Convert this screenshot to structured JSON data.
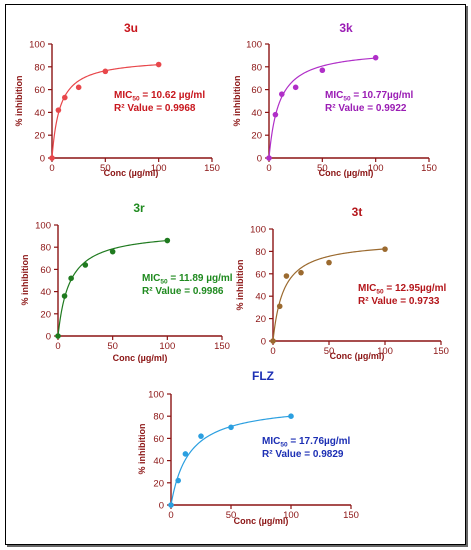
{
  "chart_data": [
    {
      "type": "scatter",
      "title": "3u",
      "xlabel": "Conc (µg/ml)",
      "ylabel": "% inhibition",
      "xlim": [
        0,
        150
      ],
      "ylim": [
        0,
        100
      ],
      "xticks": [
        "0",
        "50",
        "100",
        "150"
      ],
      "yticks": [
        "0",
        "20",
        "40",
        "60",
        "80",
        "100"
      ],
      "color": "#e8474b",
      "points": [
        [
          0,
          0
        ],
        [
          6,
          42
        ],
        [
          12,
          53
        ],
        [
          25,
          62
        ],
        [
          50,
          76
        ],
        [
          100,
          82
        ]
      ],
      "fit": {
        "top": 88,
        "ic50": 7.5
      },
      "mic_label": "MIC",
      "mic_sub": "50",
      "mic_value": " = 10.62 µg/ml",
      "r2_text": "R² Value = 0.9968"
    },
    {
      "type": "scatter",
      "title": "3k",
      "xlabel": "Conc (µg/ml)",
      "ylabel": "% inhibition",
      "xlim": [
        0,
        150
      ],
      "ylim": [
        0,
        100
      ],
      "xticks": [
        "0",
        "50",
        "100",
        "150"
      ],
      "yticks": [
        "0",
        "20",
        "40",
        "60",
        "80",
        "100"
      ],
      "color": "#b02fc8",
      "points": [
        [
          0,
          0
        ],
        [
          6,
          38
        ],
        [
          12,
          56
        ],
        [
          25,
          62
        ],
        [
          50,
          77
        ],
        [
          100,
          88
        ]
      ],
      "fit": {
        "top": 96,
        "ic50": 9.5
      },
      "mic_label": "MIC",
      "mic_sub": "50",
      "mic_value": " = 10.77µg/ml",
      "r2_text": "R² Value = 0.9922"
    },
    {
      "type": "scatter",
      "title": "3r",
      "xlabel": "Conc (µg/ml)",
      "ylabel": "% inhibition",
      "xlim": [
        0,
        150
      ],
      "ylim": [
        0,
        100
      ],
      "xticks": [
        "0",
        "50",
        "100",
        "150"
      ],
      "yticks": [
        "0",
        "20",
        "40",
        "60",
        "80",
        "100"
      ],
      "color": "#1f7a1f",
      "points": [
        [
          0,
          0
        ],
        [
          6,
          36
        ],
        [
          12,
          52
        ],
        [
          25,
          64
        ],
        [
          50,
          76
        ],
        [
          100,
          86
        ]
      ],
      "fit": {
        "top": 95,
        "ic50": 10.5
      },
      "mic_label": "MIC",
      "mic_sub": "50",
      "mic_value": " = 11.89 µg/ml",
      "r2_text": "R² Value = 0.9986"
    },
    {
      "type": "scatter",
      "title": "3t",
      "xlabel": "Conc (µg/ml)",
      "ylabel": "% inhibition",
      "xlim": [
        0,
        150
      ],
      "ylim": [
        0,
        100
      ],
      "xticks": [
        "0",
        "50",
        "100",
        "150"
      ],
      "yticks": [
        "0",
        "20",
        "40",
        "60",
        "80",
        "100"
      ],
      "color": "#9b6a2f",
      "points": [
        [
          0,
          0
        ],
        [
          6,
          31
        ],
        [
          12,
          58
        ],
        [
          25,
          61
        ],
        [
          50,
          70
        ],
        [
          100,
          82
        ]
      ],
      "fit": {
        "top": 90,
        "ic50": 9.5
      },
      "mic_label": "MIC",
      "mic_sub": "50",
      "mic_value": " = 12.95µg/ml",
      "r2_text": "R² Value = 0.9733"
    },
    {
      "type": "scatter",
      "title": "FLZ",
      "xlabel": "Conc (µg/ml)",
      "ylabel": "% inhibition",
      "xlim": [
        0,
        150
      ],
      "ylim": [
        0,
        100
      ],
      "xticks": [
        "0",
        "50",
        "100",
        "150"
      ],
      "yticks": [
        "0",
        "20",
        "40",
        "60",
        "80",
        "100"
      ],
      "color": "#2b9fe0",
      "points": [
        [
          0,
          0
        ],
        [
          6,
          22
        ],
        [
          12,
          46
        ],
        [
          25,
          62
        ],
        [
          50,
          70
        ],
        [
          100,
          80
        ]
      ],
      "fit": {
        "top": 92,
        "ic50": 15
      },
      "mic_label": "MIC",
      "mic_sub": "50",
      "mic_value": " = 17.76µg/ml",
      "r2_text": "R² Value = 0.9829"
    }
  ],
  "colors": {
    "annotation_3u": "#c8161d",
    "annotation_3k": "#9a1cb4",
    "annotation_3r": "#1f8a1f",
    "annotation_3t": "#b4161b",
    "annotation_FLZ": "#1c2fb4",
    "title_3u": "#c8161d",
    "title_3k": "#9a1cb4",
    "title_3r": "#1f8a1f",
    "title_3t": "#b4161b",
    "title_FLZ": "#1c2fb4"
  }
}
